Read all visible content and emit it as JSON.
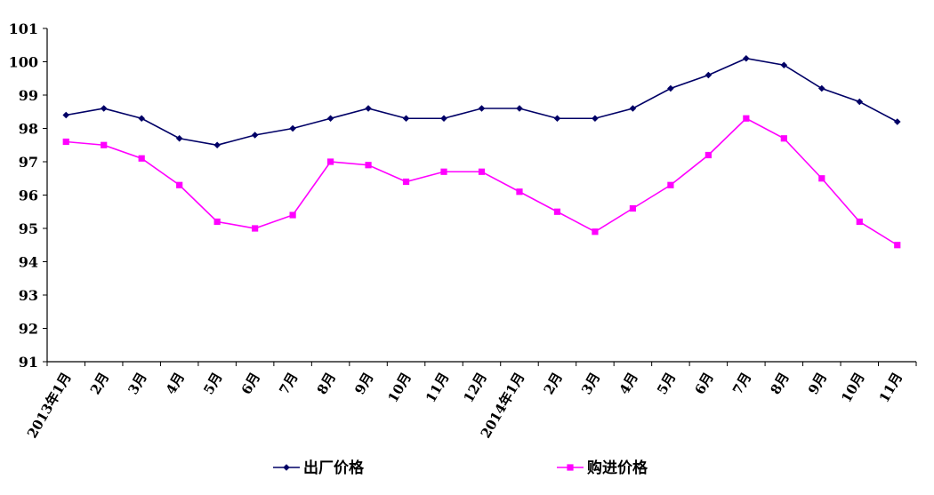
{
  "chart_data": {
    "type": "line",
    "categories": [
      "2013年1月",
      "2月",
      "3月",
      "4月",
      "5月",
      "6月",
      "7月",
      "8月",
      "9月",
      "10月",
      "11月",
      "12月",
      "2014年1月",
      "2月",
      "3月",
      "4月",
      "5月",
      "6月",
      "7月",
      "8月",
      "9月",
      "10月",
      "11月"
    ],
    "ylim": [
      91,
      101
    ],
    "yticks": [
      91,
      92,
      93,
      94,
      95,
      96,
      97,
      98,
      99,
      100,
      101
    ],
    "grid": false,
    "legend_position": "bottom",
    "series": [
      {
        "name": "出厂价格",
        "color": "#000066",
        "marker": "diamond",
        "values": [
          98.4,
          98.6,
          98.3,
          97.7,
          97.5,
          97.8,
          98.0,
          98.3,
          98.6,
          98.3,
          98.3,
          98.6,
          98.6,
          98.3,
          98.3,
          98.6,
          99.2,
          99.6,
          100.1,
          99.9,
          99.2,
          98.8,
          98.2
        ]
      },
      {
        "name": "购进价格",
        "color": "#FF00FF",
        "marker": "square",
        "values": [
          97.6,
          97.5,
          97.1,
          96.3,
          95.2,
          95.0,
          95.4,
          97.0,
          96.9,
          96.4,
          96.7,
          96.7,
          96.1,
          95.5,
          94.9,
          95.6,
          96.3,
          97.2,
          98.3,
          97.7,
          96.5,
          95.2,
          94.5
        ]
      }
    ]
  }
}
